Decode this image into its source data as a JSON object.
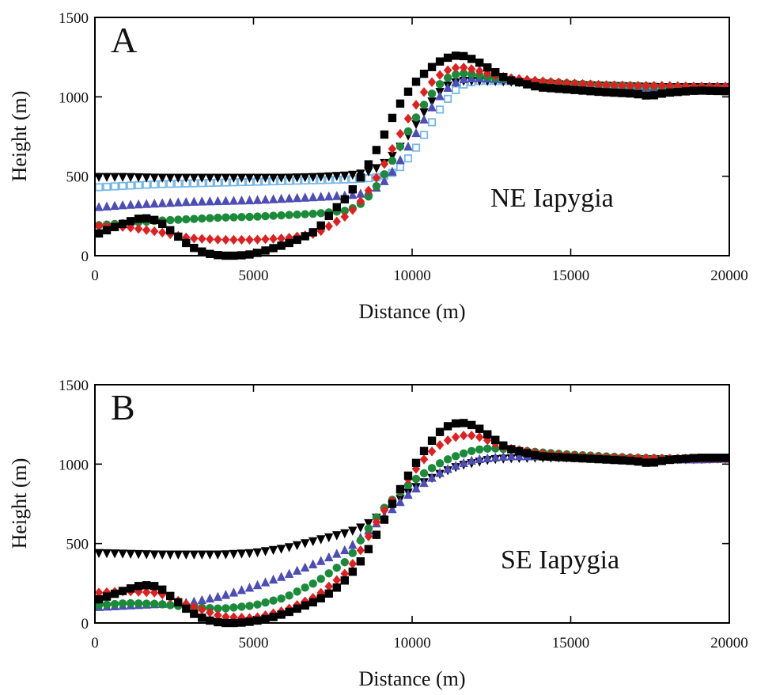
{
  "chart_data": [
    {
      "type": "scatter",
      "panel_label": "A",
      "annotation": "NE Iapygia",
      "xlabel": "Distance (m)",
      "ylabel": "Height (m)",
      "xlim": [
        0,
        20000
      ],
      "ylim": [
        0,
        1500
      ],
      "xticks": [
        0,
        5000,
        10000,
        15000,
        20000
      ],
      "yticks": [
        0,
        500,
        1000,
        1500
      ],
      "grid": false,
      "legend": "none",
      "series": [
        {
          "color": "#75b8e8",
          "marker": "square-open",
          "x": [
            0,
            1000,
            2000,
            3000,
            4000,
            5000,
            6000,
            7000,
            8000,
            8500,
            9000,
            9500,
            10000,
            10500,
            11000,
            11500,
            12000,
            12500,
            13000,
            14000,
            15000,
            16000,
            17000,
            18000,
            19000,
            20000
          ],
          "y": [
            430,
            440,
            450,
            455,
            460,
            465,
            470,
            475,
            480,
            485,
            495,
            530,
            640,
            800,
            960,
            1070,
            1100,
            1100,
            1100,
            1085,
            1075,
            1070,
            1065,
            1060,
            1060,
            1055
          ]
        },
        {
          "color": "#000000",
          "marker": "triangle-down",
          "x": [
            0,
            1000,
            2000,
            3000,
            4000,
            5000,
            6000,
            7000,
            8000,
            8500,
            9000,
            9500,
            10000,
            10500,
            11000,
            11500,
            12000,
            12500,
            13000,
            14000,
            15000,
            16000,
            17000,
            18000,
            19000,
            20000
          ],
          "y": [
            495,
            495,
            490,
            490,
            490,
            490,
            490,
            495,
            505,
            520,
            560,
            650,
            790,
            940,
            1060,
            1100,
            1100,
            1100,
            1095,
            1085,
            1075,
            1070,
            1065,
            1060,
            1060,
            1060
          ]
        },
        {
          "color": "#4d4db5",
          "marker": "triangle-up",
          "x": [
            0,
            1000,
            2000,
            3000,
            4000,
            5000,
            6000,
            7000,
            8000,
            8500,
            9000,
            9500,
            10000,
            10500,
            11000,
            11500,
            12000,
            12500,
            13000,
            14000,
            15000,
            16000,
            17000,
            18000,
            19000,
            20000
          ],
          "y": [
            305,
            320,
            330,
            340,
            345,
            350,
            360,
            370,
            380,
            395,
            440,
            560,
            730,
            900,
            1040,
            1110,
            1120,
            1115,
            1110,
            1095,
            1080,
            1070,
            1065,
            1060,
            1060,
            1060
          ]
        },
        {
          "color": "#1b8a3a",
          "marker": "circle",
          "x": [
            0,
            1000,
            2000,
            3000,
            4000,
            5000,
            6000,
            7000,
            8000,
            8500,
            9000,
            9500,
            10000,
            10500,
            11000,
            11500,
            12000,
            12500,
            13000,
            14000,
            15000,
            16000,
            17000,
            18000,
            19000,
            20000
          ],
          "y": [
            190,
            205,
            220,
            230,
            240,
            245,
            255,
            265,
            285,
            340,
            470,
            640,
            830,
            990,
            1110,
            1150,
            1140,
            1120,
            1110,
            1095,
            1085,
            1075,
            1070,
            1065,
            1060,
            1060
          ]
        },
        {
          "color": "#e02020",
          "marker": "diamond",
          "x": [
            0,
            1000,
            2000,
            3000,
            4000,
            5000,
            6000,
            7000,
            8000,
            8500,
            9000,
            9500,
            10000,
            10500,
            11000,
            11500,
            12000,
            12500,
            13000,
            14000,
            15000,
            16000,
            17000,
            18000,
            19000,
            20000
          ],
          "y": [
            190,
            180,
            150,
            110,
            100,
            100,
            110,
            140,
            260,
            370,
            530,
            720,
            910,
            1070,
            1160,
            1190,
            1170,
            1140,
            1120,
            1100,
            1085,
            1075,
            1070,
            1070,
            1065,
            1065
          ]
        },
        {
          "color": "#000000",
          "marker": "square",
          "x": [
            0,
            1000,
            1500,
            2000,
            2500,
            3000,
            3500,
            4000,
            4500,
            5000,
            5500,
            6000,
            6500,
            7000,
            7500,
            8000,
            8500,
            9000,
            9500,
            10000,
            10500,
            11000,
            11500,
            12000,
            12500,
            13000,
            14000,
            15000,
            16000,
            17000,
            17500,
            18000,
            19000,
            20000
          ],
          "y": [
            130,
            210,
            240,
            220,
            140,
            60,
            15,
            0,
            0,
            10,
            40,
            70,
            110,
            160,
            280,
            380,
            530,
            710,
            920,
            1070,
            1170,
            1240,
            1265,
            1230,
            1170,
            1110,
            1060,
            1045,
            1030,
            1020,
            1005,
            1025,
            1040,
            1035
          ]
        }
      ]
    },
    {
      "type": "scatter",
      "panel_label": "B",
      "annotation": "SE Iapygia",
      "xlabel": "Distance (m)",
      "ylabel": "Height (m)",
      "xlim": [
        0,
        20000
      ],
      "ylim": [
        0,
        1500
      ],
      "xticks": [
        0,
        5000,
        10000,
        15000,
        20000
      ],
      "yticks": [
        0,
        500,
        1000,
        1500
      ],
      "grid": false,
      "legend": "none",
      "series": [
        {
          "color": "#000000",
          "marker": "triangle-down",
          "x": [
            0,
            1000,
            2000,
            3000,
            4000,
            5000,
            6000,
            7000,
            8000,
            8500,
            9000,
            9500,
            10000,
            10500,
            11000,
            11500,
            12000,
            12500,
            13000,
            14000,
            15000,
            16000,
            17000,
            18000,
            19000,
            20000
          ],
          "y": [
            440,
            435,
            430,
            430,
            430,
            440,
            470,
            520,
            570,
            610,
            680,
            760,
            840,
            900,
            950,
            990,
            1010,
            1030,
            1035,
            1040,
            1040,
            1035,
            1030,
            1030,
            1030,
            1035
          ]
        },
        {
          "color": "#4d4db5",
          "marker": "triangle-up",
          "x": [
            0,
            1000,
            2000,
            3000,
            4000,
            5000,
            6000,
            7000,
            8000,
            8500,
            9000,
            9500,
            10000,
            10500,
            11000,
            11500,
            12000,
            12500,
            13000,
            14000,
            15000,
            16000,
            17000,
            18000,
            19000,
            20000
          ],
          "y": [
            100,
            110,
            120,
            130,
            170,
            230,
            300,
            380,
            470,
            560,
            650,
            740,
            830,
            900,
            960,
            1000,
            1030,
            1040,
            1050,
            1050,
            1045,
            1040,
            1035,
            1030,
            1030,
            1035
          ]
        },
        {
          "color": "#1b8a3a",
          "marker": "circle",
          "x": [
            0,
            1000,
            2000,
            3000,
            4000,
            5000,
            6000,
            7000,
            8000,
            8500,
            9000,
            9500,
            10000,
            10500,
            11000,
            11500,
            12000,
            12500,
            13000,
            14000,
            15000,
            16000,
            17000,
            18000,
            19000,
            20000
          ],
          "y": [
            110,
            125,
            120,
            100,
            90,
            110,
            160,
            260,
            400,
            560,
            700,
            800,
            890,
            960,
            1020,
            1060,
            1090,
            1100,
            1095,
            1075,
            1060,
            1050,
            1040,
            1035,
            1035,
            1035
          ]
        },
        {
          "color": "#e02020",
          "marker": "diamond",
          "x": [
            0,
            1000,
            2000,
            3000,
            4000,
            5000,
            6000,
            7000,
            8000,
            8500,
            9000,
            9500,
            10000,
            10500,
            11000,
            11500,
            12000,
            12500,
            13000,
            14000,
            15000,
            16000,
            17000,
            18000,
            19000,
            20000
          ],
          "y": [
            190,
            200,
            190,
            110,
            40,
            30,
            80,
            170,
            330,
            500,
            680,
            800,
            940,
            1060,
            1140,
            1180,
            1180,
            1140,
            1100,
            1070,
            1055,
            1045,
            1040,
            1035,
            1035,
            1035
          ]
        },
        {
          "color": "#000000",
          "marker": "square",
          "x": [
            0,
            1000,
            1500,
            2000,
            2500,
            3000,
            3500,
            4000,
            4500,
            5000,
            5500,
            6000,
            6500,
            7000,
            7500,
            8000,
            8500,
            9000,
            9500,
            10000,
            10500,
            11000,
            11500,
            12000,
            12500,
            13000,
            14000,
            15000,
            16000,
            17000,
            17500,
            18000,
            19000,
            20000
          ],
          "y": [
            140,
            210,
            240,
            230,
            150,
            70,
            20,
            0,
            0,
            10,
            30,
            60,
            100,
            140,
            200,
            290,
            420,
            600,
            800,
            970,
            1120,
            1230,
            1265,
            1240,
            1170,
            1100,
            1050,
            1040,
            1030,
            1020,
            1005,
            1025,
            1040,
            1040
          ]
        }
      ]
    }
  ]
}
